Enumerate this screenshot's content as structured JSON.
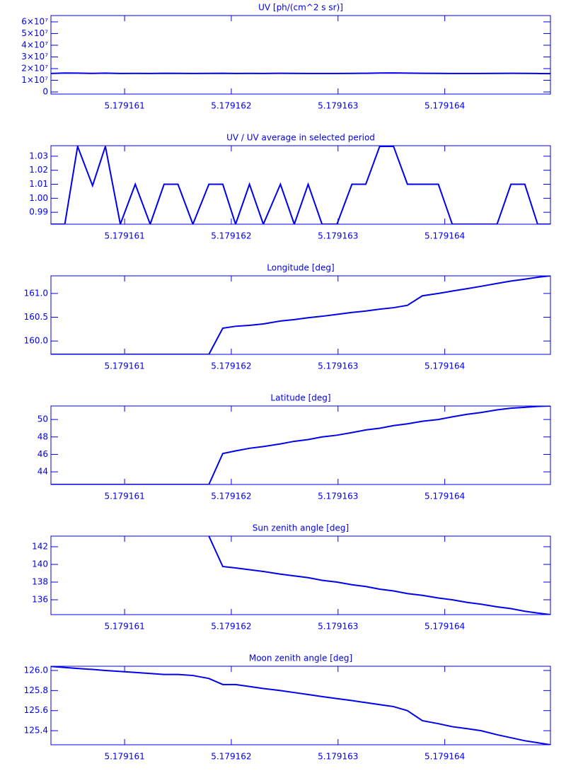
{
  "chart_data": [
    {
      "type": "line",
      "title": "UV [ph/(cm^2 s sr)]",
      "color": "#0000ee",
      "x": [
        5.17916031,
        5.17916044,
        5.17916056,
        5.1791607,
        5.17916082,
        5.17916096,
        5.1791611,
        5.17916124,
        5.17916137,
        5.1791615,
        5.17916164,
        5.17916179,
        5.17916192,
        5.17916204,
        5.17916217,
        5.1791623,
        5.17916246,
        5.17916259,
        5.17916272,
        5.17916285,
        5.17916299,
        5.17916313,
        5.17916326,
        5.17916339,
        5.17916352,
        5.17916365,
        5.17916379,
        5.17916394,
        5.17916407,
        5.17916421,
        5.17916434,
        5.17916449,
        5.17916462,
        5.17916475,
        5.17916487,
        5.17916499
      ],
      "values": [
        15800000,
        16200000,
        16100000,
        15900000,
        16100000,
        15800000,
        15900000,
        15800000,
        16000000,
        15900000,
        15800000,
        15900000,
        16000000,
        15800000,
        15900000,
        15800000,
        16000000,
        15900000,
        15800000,
        15800000,
        15800000,
        15900000,
        16000000,
        16200000,
        16300000,
        16100000,
        16000000,
        15900000,
        15800000,
        15800000,
        15800000,
        15900000,
        16000000,
        15900000,
        15800000,
        15700000
      ],
      "xlim": [
        5.17916031,
        5.17916499
      ],
      "xticks": [
        5.179161,
        5.179162,
        5.179163,
        5.179164
      ],
      "ylim": [
        -1800000,
        65400000
      ],
      "yticks": [
        0,
        {
          "value": 10000000,
          "label": "1×10⁷"
        },
        {
          "value": 20000000,
          "label": "2×10⁷"
        },
        {
          "value": 30000000,
          "label": "3×10⁷"
        },
        {
          "value": 40000000,
          "label": "4×10⁷"
        },
        {
          "value": 50000000,
          "label": "5×10⁷"
        },
        {
          "value": 60000000,
          "label": "6×10⁷"
        }
      ]
    },
    {
      "type": "line",
      "title": "UV / UV average in selected period",
      "color": "#0000ee",
      "x": [
        5.17916031,
        5.17916044,
        5.17916056,
        5.1791607,
        5.17916082,
        5.17916096,
        5.1791611,
        5.17916124,
        5.17916137,
        5.1791615,
        5.17916164,
        5.17916179,
        5.17916192,
        5.17916204,
        5.17916217,
        5.1791623,
        5.17916246,
        5.17916259,
        5.17916272,
        5.17916285,
        5.17916299,
        5.17916313,
        5.17916326,
        5.17916339,
        5.17916352,
        5.17916365,
        5.17916379,
        5.17916394,
        5.17916407,
        5.17916421,
        5.17916434,
        5.17916449,
        5.17916462,
        5.17916475,
        5.17916487,
        5.17916499
      ],
      "values": [
        0.9815,
        0.9815,
        1.037,
        1.009,
        1.037,
        0.9815,
        1.01,
        0.9815,
        1.01,
        1.01,
        0.9815,
        1.01,
        1.01,
        0.9815,
        1.01,
        0.9815,
        1.01,
        0.9815,
        1.01,
        0.9815,
        0.9815,
        1.01,
        1.01,
        1.037,
        1.037,
        1.01,
        1.01,
        1.01,
        0.9815,
        0.9815,
        0.9815,
        0.9815,
        1.01,
        1.01,
        0.9815,
        0.9815
      ],
      "xlim": [
        5.17916031,
        5.17916499
      ],
      "xticks": [
        5.179161,
        5.179162,
        5.179163,
        5.179164
      ],
      "ylim": [
        0.9815,
        1.0375
      ],
      "yticks": [
        0.99,
        {
          "value": 1,
          "label": "1.00"
        },
        1.01,
        1.02,
        1.03
      ]
    },
    {
      "type": "line",
      "title": "Longitude [deg]",
      "color": "#0000ee",
      "x": [
        5.17916031,
        5.17916044,
        5.17916056,
        5.1791607,
        5.17916082,
        5.17916096,
        5.1791611,
        5.17916124,
        5.17916137,
        5.1791615,
        5.17916164,
        5.17916179,
        5.17916192,
        5.17916204,
        5.17916217,
        5.1791623,
        5.17916246,
        5.17916259,
        5.17916272,
        5.17916285,
        5.17916299,
        5.17916313,
        5.17916326,
        5.17916339,
        5.17916352,
        5.17916365,
        5.17916379,
        5.17916394,
        5.17916407,
        5.17916421,
        5.17916434,
        5.17916449,
        5.17916462,
        5.17916475,
        5.17916487,
        5.17916499
      ],
      "values": [
        159.72,
        159.72,
        159.72,
        159.72,
        159.72,
        159.72,
        159.72,
        159.72,
        159.72,
        159.72,
        159.72,
        159.72,
        160.27,
        160.31,
        160.33,
        160.36,
        160.42,
        160.45,
        160.49,
        160.52,
        160.56,
        160.6,
        160.63,
        160.67,
        160.7,
        160.75,
        160.95,
        161,
        161.05,
        161.1,
        161.15,
        161.21,
        161.26,
        161.3,
        161.34,
        161.37
      ],
      "xlim": [
        5.17916031,
        5.17916499
      ],
      "xticks": [
        5.179161,
        5.179162,
        5.179163,
        5.179164
      ],
      "ylim": [
        159.72,
        161.37
      ],
      "yticks": [
        {
          "value": 160,
          "label": "160.0"
        },
        160.5,
        {
          "value": 161,
          "label": "161.0"
        }
      ]
    },
    {
      "type": "line",
      "title": "Latitude [deg]",
      "color": "#0000ee",
      "x": [
        5.17916031,
        5.17916044,
        5.17916056,
        5.1791607,
        5.17916082,
        5.17916096,
        5.1791611,
        5.17916124,
        5.17916137,
        5.1791615,
        5.17916164,
        5.17916179,
        5.17916192,
        5.17916204,
        5.17916217,
        5.1791623,
        5.17916246,
        5.17916259,
        5.17916272,
        5.17916285,
        5.17916299,
        5.17916313,
        5.17916326,
        5.17916339,
        5.17916352,
        5.17916365,
        5.17916379,
        5.17916394,
        5.17916407,
        5.17916421,
        5.17916434,
        5.17916449,
        5.17916462,
        5.17916475,
        5.17916487,
        5.17916499
      ],
      "values": [
        42.55,
        42.55,
        42.55,
        42.55,
        42.55,
        42.55,
        42.55,
        42.55,
        42.55,
        42.55,
        42.55,
        42.55,
        46.1,
        46.4,
        46.7,
        46.9,
        47.2,
        47.5,
        47.7,
        48,
        48.2,
        48.5,
        48.8,
        49,
        49.3,
        49.5,
        49.8,
        50,
        50.3,
        50.6,
        50.8,
        51.1,
        51.3,
        51.4,
        51.5,
        51.55
      ],
      "xlim": [
        5.17916031,
        5.17916499
      ],
      "xticks": [
        5.179161,
        5.179162,
        5.179163,
        5.179164
      ],
      "ylim": [
        42.55,
        51.55
      ],
      "yticks": [
        44,
        46,
        48,
        50
      ]
    },
    {
      "type": "line",
      "title": "Sun zenith angle [deg]",
      "color": "#0000ee",
      "x": [
        5.17916031,
        5.17916044,
        5.17916056,
        5.1791607,
        5.17916082,
        5.17916096,
        5.1791611,
        5.17916124,
        5.17916137,
        5.1791615,
        5.17916164,
        5.17916179,
        5.17916192,
        5.17916204,
        5.17916217,
        5.1791623,
        5.17916246,
        5.17916259,
        5.17916272,
        5.17916285,
        5.17916299,
        5.17916313,
        5.17916326,
        5.17916339,
        5.17916352,
        5.17916365,
        5.17916379,
        5.17916394,
        5.17916407,
        5.17916421,
        5.17916434,
        5.17916449,
        5.17916462,
        5.17916475,
        5.17916487,
        5.17916499
      ],
      "values": [
        null,
        null,
        null,
        null,
        null,
        null,
        null,
        null,
        null,
        null,
        null,
        143.2,
        139.76,
        139.6,
        139.4,
        139.2,
        138.9,
        138.7,
        138.5,
        138.2,
        138,
        137.7,
        137.5,
        137.2,
        137,
        136.7,
        136.5,
        136.2,
        136,
        135.7,
        135.5,
        135.2,
        135,
        134.7,
        134.5,
        134.32
      ],
      "xlim": [
        5.17916031,
        5.17916499
      ],
      "xticks": [
        5.179161,
        5.179162,
        5.179163,
        5.179164
      ],
      "ylim": [
        134.32,
        143.2
      ],
      "yticks": [
        136,
        138,
        140,
        142
      ]
    },
    {
      "type": "line",
      "title": "Moon zenith angle [deg]",
      "color": "#0000ee",
      "x": [
        5.17916031,
        5.17916044,
        5.17916056,
        5.1791607,
        5.17916082,
        5.17916096,
        5.1791611,
        5.17916124,
        5.17916137,
        5.1791615,
        5.17916164,
        5.17916179,
        5.17916192,
        5.17916204,
        5.17916217,
        5.1791623,
        5.17916246,
        5.17916259,
        5.17916272,
        5.17916285,
        5.17916299,
        5.17916313,
        5.17916326,
        5.17916339,
        5.17916352,
        5.17916365,
        5.17916379,
        5.17916394,
        5.17916407,
        5.17916421,
        5.17916434,
        5.17916449,
        5.17916462,
        5.17916475,
        5.17916487,
        5.17916499
      ],
      "values": [
        126.04,
        126.03,
        126.02,
        126.01,
        126,
        125.99,
        125.98,
        125.97,
        125.96,
        125.96,
        125.95,
        125.92,
        125.86,
        125.86,
        125.84,
        125.82,
        125.8,
        125.78,
        125.76,
        125.74,
        125.72,
        125.7,
        125.68,
        125.66,
        125.64,
        125.6,
        125.5,
        125.47,
        125.44,
        125.42,
        125.4,
        125.36,
        125.33,
        125.3,
        125.28,
        125.26
      ],
      "xlim": [
        5.17916031,
        5.17916499
      ],
      "xticks": [
        5.179161,
        5.179162,
        5.179163,
        5.179164
      ],
      "ylim": [
        125.26,
        126.042
      ],
      "yticks": [
        125.4,
        125.6,
        125.8,
        {
          "value": 126,
          "label": "126.0"
        }
      ]
    }
  ]
}
